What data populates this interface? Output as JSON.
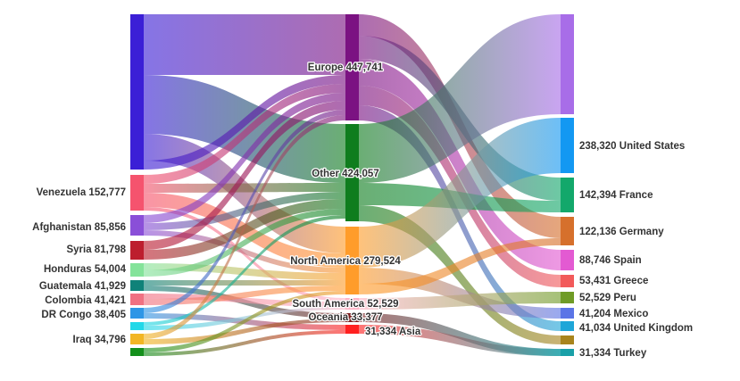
{
  "chart_data": {
    "type": "sankey",
    "title": "",
    "sources": [
      {
        "name": "(unlabeled)",
        "value": null,
        "color": "#3b1fd6",
        "label": ""
      },
      {
        "name": "Venezuela",
        "value": 152777,
        "color": "#f5536e",
        "label": "Venezuela 152,777"
      },
      {
        "name": "Afghanistan",
        "value": 85856,
        "color": "#8a4fd8",
        "label": "Afghanistan 85,856"
      },
      {
        "name": "Syria",
        "value": 81798,
        "color": "#bd1e2e",
        "label": "Syria 81,798"
      },
      {
        "name": "Honduras",
        "value": 54004,
        "color": "#84e39a",
        "label": "Honduras 54,004"
      },
      {
        "name": "Guatemala",
        "value": 41929,
        "color": "#0f8279",
        "label": "Guatemala 41,929"
      },
      {
        "name": "Colombia",
        "value": 41421,
        "color": "#f07182",
        "label": "Colombia 41,421"
      },
      {
        "name": "DR Congo",
        "value": 38405,
        "color": "#2d96e6",
        "label": "DR Congo 38,405"
      },
      {
        "name": "(unlabeled)",
        "value": null,
        "color": "#22d8e8",
        "label": ""
      },
      {
        "name": "Iraq",
        "value": 34796,
        "color": "#f2b624",
        "label": "Iraq 34,796"
      },
      {
        "name": "(unlabeled)",
        "value": null,
        "color": "#138f1b",
        "label": ""
      }
    ],
    "regions": [
      {
        "name": "Europe",
        "value": 447741,
        "color": "#7b1282",
        "label": "Europe 447,741"
      },
      {
        "name": "Other",
        "value": 424057,
        "color": "#0f7d1e",
        "label": "Other 424,057"
      },
      {
        "name": "North America",
        "value": 279524,
        "color": "#ff9c2a",
        "label": "North America 279,524"
      },
      {
        "name": "South America",
        "value": 52529,
        "color": "#ffb3c6",
        "label": "South America 52,529"
      },
      {
        "name": "Oceania",
        "value": 33377,
        "color": "#7a1f1f",
        "label": "Oceania 33,377"
      },
      {
        "name": "Asia",
        "value": 31334,
        "color": "#ff2020",
        "label": "31,334 Asia"
      }
    ],
    "destinations": [
      {
        "name": "(unlabeled)",
        "value": null,
        "color": "#a86de8",
        "label": ""
      },
      {
        "name": "United States",
        "value": 238320,
        "color": "#1398f2",
        "label": "238,320 United States"
      },
      {
        "name": "France",
        "value": 142394,
        "color": "#13a86b",
        "label": "142,394 France"
      },
      {
        "name": "Germany",
        "value": 122136,
        "color": "#d6702c",
        "label": "122,136 Germany"
      },
      {
        "name": "Spain",
        "value": 88746,
        "color": "#e35ad2",
        "label": "88,746 Spain"
      },
      {
        "name": "Greece",
        "value": 53431,
        "color": "#f25a5a",
        "label": "53,431 Greece"
      },
      {
        "name": "Peru",
        "value": 52529,
        "color": "#6f9b26",
        "label": "52,529 Peru"
      },
      {
        "name": "Mexico",
        "value": 41204,
        "color": "#5b74e6",
        "label": "41,204 Mexico"
      },
      {
        "name": "United Kingdom",
        "value": 41034,
        "color": "#1fa6d8",
        "label": "41,034 United Kingdom"
      },
      {
        "name": "(unlabeled)",
        "value": null,
        "color": "#a8841d",
        "label": ""
      },
      {
        "name": "Turkey",
        "value": 31334,
        "color": "#1aa0a8",
        "label": "31,334 Turkey"
      }
    ]
  }
}
